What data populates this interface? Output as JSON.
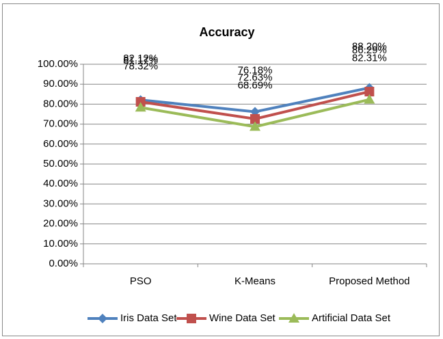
{
  "chart_data": {
    "type": "line",
    "title": "Accuracy",
    "categories": [
      "PSO",
      "K-Means",
      "Proposed Method"
    ],
    "series": [
      {
        "name": "Iris Data Set",
        "color": "#4f81bd",
        "marker": "diamond",
        "values": [
          82.12,
          76.18,
          88.2
        ],
        "value_labels": [
          "82.12%",
          "76.18%",
          "88.20%"
        ]
      },
      {
        "name": "Wine Data Set",
        "color": "#c0504d",
        "marker": "square",
        "values": [
          81.17,
          72.63,
          86.29
        ],
        "value_labels": [
          "81.17%",
          "72.63%",
          "86.29%"
        ]
      },
      {
        "name": "Artificial Data Set",
        "color": "#9bbb59",
        "marker": "triangle",
        "values": [
          78.32,
          68.69,
          82.31
        ],
        "value_labels": [
          "78.32%",
          "68.69%",
          "82.31%"
        ]
      }
    ],
    "ylim": [
      0,
      100
    ],
    "yticks": [
      {
        "value": 0,
        "label": "0.00%"
      },
      {
        "value": 10,
        "label": "10.00%"
      },
      {
        "value": 20,
        "label": "20.00%"
      },
      {
        "value": 30,
        "label": "30.00%"
      },
      {
        "value": 40,
        "label": "40.00%"
      },
      {
        "value": 50,
        "label": "50.00%"
      },
      {
        "value": 60,
        "label": "60.00%"
      },
      {
        "value": 70,
        "label": "70.00%"
      },
      {
        "value": 80,
        "label": "80.00%"
      },
      {
        "value": 90,
        "label": "90.00%"
      },
      {
        "value": 100,
        "label": "100.00%"
      }
    ],
    "grid": true,
    "legend": "bottom"
  }
}
